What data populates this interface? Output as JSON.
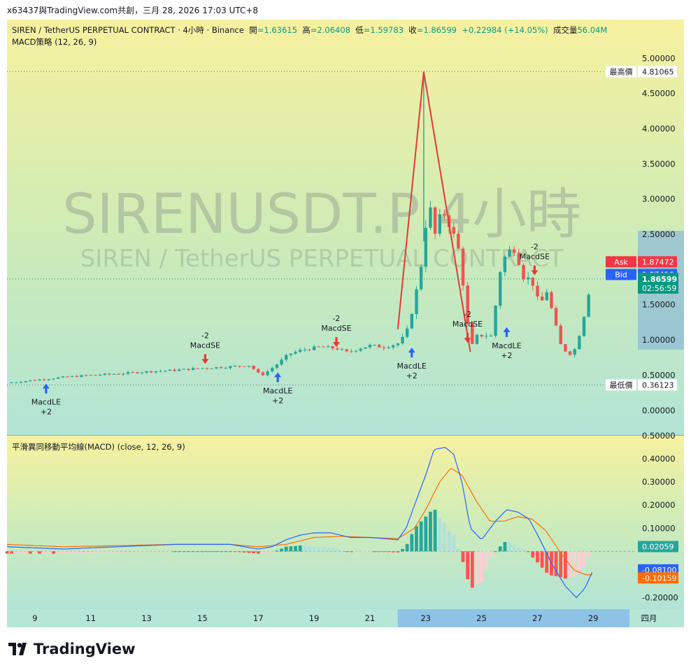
{
  "header": {
    "share_text": "x63437與TradingView.com共創，三月 28, 2026 17:03 UTC+8"
  },
  "legend": {
    "symbol": "SIREN / TetherUS PERPETUAL CONTRACT · 4小時 · Binance",
    "open_label": "開",
    "open": "=1.63615",
    "high_label": "高",
    "high": "=2.06408",
    "low_label": "低",
    "low": "=1.59783",
    "close_label": "收",
    "close": "=1.86599",
    "change": "+0.22984 (+14.05%)",
    "volume_label": "成交量",
    "volume": "56.04M",
    "strategy": "MACD策略 (12, 26, 9)",
    "indicator": "平滑異同移動平均線(MACD) (close, 12, 26, 9)"
  },
  "watermark": {
    "line1": "SIRENUSDT.P 4小時",
    "line2": "SIREN / TetherUS PERPETUAL CONTRACT"
  },
  "price_axis": {
    "ticks": [
      "5.00000",
      "4.50000",
      "4.00000",
      "3.50000",
      "3.00000",
      "2.50000",
      "1.50000",
      "1.00000",
      "0.50000",
      "0.00000"
    ],
    "high_label": "最高價",
    "high_value": "4.81065",
    "low_label": "最低價",
    "low_value": "0.36123",
    "ask_label": "Ask",
    "ask_value": "1.87472",
    "bid_label": "Bid",
    "bid_value": "1.87416",
    "last_value": "1.86599",
    "countdown": "02:56:59"
  },
  "macd_axis": {
    "ticks": [
      "0.50000",
      "0.40000",
      "0.30000",
      "0.20000",
      "0.10000",
      "-0.20000"
    ],
    "hist_value": "0.02059",
    "macd_value": "-0.08100",
    "signal_value": "-0.10159"
  },
  "time_axis": {
    "labels": [
      "9",
      "11",
      "13",
      "15",
      "17",
      "19",
      "21",
      "23",
      "25",
      "27",
      "29",
      "四月"
    ]
  },
  "signals": [
    {
      "type": "long",
      "text": "MacdLE",
      "qty": "+2"
    },
    {
      "type": "short",
      "text": "MacdSE",
      "qty": "-2"
    },
    {
      "type": "long",
      "text": "MacdLE",
      "qty": "+2"
    },
    {
      "type": "short",
      "text": "MacdSE",
      "qty": "-2"
    },
    {
      "type": "long",
      "text": "MacdLE",
      "qty": "+2"
    },
    {
      "type": "short",
      "text": "MacdSE",
      "qty": "-2"
    },
    {
      "type": "long",
      "text": "MacdLE",
      "qty": "+2"
    },
    {
      "type": "short",
      "text": "MacdSE",
      "qty": "-2"
    }
  ],
  "colors": {
    "up": "#26a69a",
    "down": "#ef5350",
    "macd": "#2962ff",
    "signal": "#ff6d00",
    "ask": "#f23645",
    "bid": "#2962ff",
    "last": "#089981"
  },
  "chart_data": {
    "type": "candlestick",
    "price_ylim": [
      -0.35,
      5.55
    ],
    "macd_ylim": [
      -0.25,
      0.5
    ],
    "x_range": [
      8.0,
      30.5
    ],
    "high": 4.81065,
    "low": 0.36123,
    "open": 1.63615,
    "close": 1.86599,
    "close_path": [
      [
        8.0,
        0.39
      ],
      [
        9.0,
        0.43
      ],
      [
        10.0,
        0.47
      ],
      [
        11.0,
        0.5
      ],
      [
        12.0,
        0.52
      ],
      [
        13.0,
        0.55
      ],
      [
        14.0,
        0.57
      ],
      [
        15.0,
        0.6
      ],
      [
        16.0,
        0.62
      ],
      [
        16.7,
        0.64
      ],
      [
        17.1,
        0.49
      ],
      [
        17.6,
        0.63
      ],
      [
        18.1,
        0.8
      ],
      [
        18.6,
        0.86
      ],
      [
        19.2,
        0.9
      ],
      [
        19.8,
        0.88
      ],
      [
        20.2,
        0.82
      ],
      [
        20.6,
        0.88
      ],
      [
        21.0,
        0.92
      ],
      [
        21.5,
        0.9
      ],
      [
        22.0,
        0.95
      ],
      [
        22.3,
        1.08
      ],
      [
        22.6,
        1.55
      ],
      [
        22.9,
        2.2
      ],
      [
        23.1,
        3.05
      ],
      [
        23.3,
        2.45
      ],
      [
        23.6,
        2.85
      ],
      [
        23.9,
        2.6
      ],
      [
        24.2,
        2.25
      ],
      [
        24.4,
        1.6
      ],
      [
        24.6,
        0.86
      ],
      [
        24.8,
        1.05
      ],
      [
        25.1,
        1.07
      ],
      [
        25.4,
        1.05
      ],
      [
        25.6,
        1.9
      ],
      [
        25.9,
        2.25
      ],
      [
        26.2,
        2.3
      ],
      [
        26.5,
        1.9
      ],
      [
        26.8,
        1.85
      ],
      [
        27.1,
        1.45
      ],
      [
        27.3,
        1.75
      ],
      [
        27.6,
        1.3
      ],
      [
        27.8,
        0.95
      ],
      [
        28.1,
        0.8
      ],
      [
        28.3,
        0.82
      ],
      [
        28.6,
        1.2
      ],
      [
        28.8,
        1.63
      ],
      [
        29.0,
        1.87
      ]
    ],
    "high_point": {
      "x": 22.93,
      "y": 4.81065
    },
    "trade_lines": [
      [
        [
          22.0,
          1.15
        ],
        [
          22.93,
          4.81
        ]
      ],
      [
        [
          22.93,
          4.81
        ],
        [
          24.6,
          0.83
        ]
      ]
    ],
    "signal_points": [
      {
        "x": 9.4,
        "y": 0.42
      },
      {
        "x": 15.1,
        "y": 0.62
      },
      {
        "x": 17.7,
        "y": 0.58
      },
      {
        "x": 19.8,
        "y": 0.86
      },
      {
        "x": 22.5,
        "y": 0.93
      },
      {
        "x": 24.5,
        "y": 0.92
      },
      {
        "x": 25.9,
        "y": 1.22
      },
      {
        "x": 26.9,
        "y": 1.88
      }
    ],
    "macd_line": [
      [
        8.0,
        0.02
      ],
      [
        10.0,
        0.01
      ],
      [
        12.0,
        0.02
      ],
      [
        14.0,
        0.03
      ],
      [
        16.0,
        0.03
      ],
      [
        17.0,
        0.01
      ],
      [
        17.5,
        0.02
      ],
      [
        18.0,
        0.05
      ],
      [
        18.5,
        0.07
      ],
      [
        19.0,
        0.08
      ],
      [
        19.6,
        0.08
      ],
      [
        20.3,
        0.06
      ],
      [
        21.0,
        0.06
      ],
      [
        21.5,
        0.055
      ],
      [
        22.0,
        0.05
      ],
      [
        22.3,
        0.1
      ],
      [
        22.6,
        0.2
      ],
      [
        23.0,
        0.33
      ],
      [
        23.3,
        0.44
      ],
      [
        23.7,
        0.45
      ],
      [
        24.0,
        0.42
      ],
      [
        24.3,
        0.3
      ],
      [
        24.6,
        0.1
      ],
      [
        25.0,
        0.05
      ],
      [
        25.5,
        0.13
      ],
      [
        25.9,
        0.18
      ],
      [
        26.3,
        0.17
      ],
      [
        26.7,
        0.14
      ],
      [
        27.1,
        0.05
      ],
      [
        27.5,
        -0.05
      ],
      [
        28.0,
        -0.15
      ],
      [
        28.4,
        -0.2
      ],
      [
        28.7,
        -0.16
      ],
      [
        29.0,
        -0.081
      ]
    ],
    "signal_line": [
      [
        8.0,
        0.03
      ],
      [
        10.0,
        0.02
      ],
      [
        12.0,
        0.025
      ],
      [
        14.0,
        0.03
      ],
      [
        16.0,
        0.03
      ],
      [
        17.0,
        0.02
      ],
      [
        18.0,
        0.03
      ],
      [
        19.0,
        0.06
      ],
      [
        20.0,
        0.065
      ],
      [
        21.0,
        0.06
      ],
      [
        22.0,
        0.055
      ],
      [
        22.6,
        0.1
      ],
      [
        23.0,
        0.18
      ],
      [
        23.5,
        0.3
      ],
      [
        23.9,
        0.36
      ],
      [
        24.3,
        0.33
      ],
      [
        24.8,
        0.22
      ],
      [
        25.3,
        0.13
      ],
      [
        25.8,
        0.13
      ],
      [
        26.3,
        0.15
      ],
      [
        26.8,
        0.14
      ],
      [
        27.3,
        0.09
      ],
      [
        27.8,
        0.0
      ],
      [
        28.3,
        -0.08
      ],
      [
        28.7,
        -0.1
      ],
      [
        29.0,
        -0.10159
      ]
    ],
    "hist_last": 0.02059
  }
}
